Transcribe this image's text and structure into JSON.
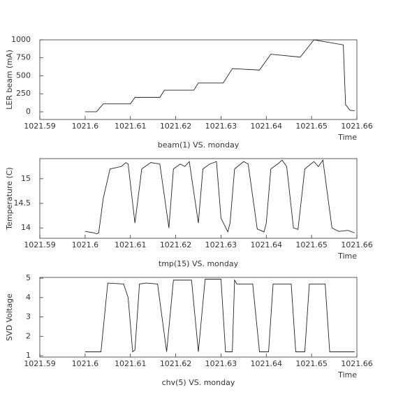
{
  "chart_data": [
    {
      "type": "line",
      "title": "beam(1) VS. monday",
      "xlabel": "Time",
      "ylabel": "LER beam (mA)",
      "color": "#222222",
      "x": [
        1021.6,
        1021.6025,
        1021.604,
        1021.61,
        1021.611,
        1021.6165,
        1021.6175,
        1021.624,
        1021.625,
        1021.6305,
        1021.6325,
        1021.6385,
        1021.641,
        1021.6475,
        1021.6505,
        1021.657,
        1021.6575,
        1021.6585,
        1021.6595
      ],
      "values": [
        0,
        0,
        110,
        110,
        200,
        200,
        300,
        300,
        400,
        400,
        600,
        580,
        800,
        760,
        1000,
        930,
        100,
        20,
        15
      ],
      "xlim": [
        1021.59,
        1021.66
      ],
      "xticks": [
        1021.59,
        1021.6,
        1021.61,
        1021.62,
        1021.63,
        1021.64,
        1021.65,
        1021.66
      ],
      "ylim": [
        -107,
        1000
      ],
      "yticks": [
        0,
        250,
        500,
        750,
        1000
      ]
    },
    {
      "type": "line",
      "title": "tmp(15) VS. monday",
      "xlabel": "Time",
      "ylabel": "Temperature (C)",
      "color": "#222222",
      "x": [
        1021.6,
        1021.602,
        1021.6025,
        1021.603,
        1021.604,
        1021.6055,
        1021.608,
        1021.609,
        1021.6095,
        1021.611,
        1021.6125,
        1021.6145,
        1021.6165,
        1021.6185,
        1021.6195,
        1021.621,
        1021.622,
        1021.623,
        1021.625,
        1021.626,
        1021.6275,
        1021.629,
        1021.63,
        1021.6315,
        1021.632,
        1021.633,
        1021.635,
        1021.636,
        1021.638,
        1021.6395,
        1021.64,
        1021.641,
        1021.6425,
        1021.6435,
        1021.6445,
        1021.646,
        1021.647,
        1021.6485,
        1021.6505,
        1021.6515,
        1021.6525,
        1021.6545,
        1021.656,
        1021.658,
        1021.6595
      ],
      "values": [
        13.93,
        13.9,
        13.88,
        13.9,
        14.6,
        15.2,
        15.25,
        15.33,
        15.3,
        14.1,
        15.2,
        15.33,
        15.3,
        14.0,
        15.2,
        15.3,
        15.25,
        15.35,
        14.1,
        15.2,
        15.3,
        15.35,
        14.2,
        13.92,
        14.1,
        15.2,
        15.35,
        15.3,
        13.98,
        13.92,
        14.1,
        15.2,
        15.3,
        15.38,
        15.25,
        14.0,
        13.97,
        15.2,
        15.35,
        15.25,
        15.38,
        14.0,
        13.93,
        13.95,
        13.9
      ],
      "xlim": [
        1021.59,
        1021.66
      ],
      "xticks": [
        1021.59,
        1021.6,
        1021.61,
        1021.62,
        1021.63,
        1021.64,
        1021.65,
        1021.66
      ],
      "ylim": [
        13.79,
        15.41
      ],
      "yticks": [
        14,
        14.5,
        15
      ]
    },
    {
      "type": "line",
      "title": "chv(5) VS. monday",
      "xlabel": "Time",
      "ylabel": "SVD Voltage",
      "color": "#222222",
      "x": [
        1021.6,
        1021.6035,
        1021.605,
        1021.6085,
        1021.6095,
        1021.6105,
        1021.611,
        1021.612,
        1021.6135,
        1021.616,
        1021.618,
        1021.6195,
        1021.6235,
        1021.625,
        1021.6265,
        1021.63,
        1021.631,
        1021.6325,
        1021.633,
        1021.6335,
        1021.637,
        1021.6385,
        1021.6405,
        1021.6415,
        1021.6455,
        1021.6465,
        1021.6485,
        1021.6495,
        1021.653,
        1021.654,
        1021.6595
      ],
      "values": [
        1.2,
        1.2,
        4.75,
        4.7,
        4.0,
        1.2,
        1.3,
        4.7,
        4.75,
        4.7,
        1.2,
        4.9,
        4.9,
        1.2,
        4.95,
        4.95,
        1.2,
        1.2,
        4.9,
        4.7,
        4.7,
        1.2,
        1.2,
        4.7,
        4.7,
        1.2,
        1.2,
        4.7,
        4.7,
        1.2,
        1.2
      ],
      "xlim": [
        1021.59,
        1021.66
      ],
      "xticks": [
        1021.59,
        1021.6,
        1021.61,
        1021.62,
        1021.63,
        1021.64,
        1021.65,
        1021.66
      ],
      "ylim": [
        0.93,
        5.04
      ],
      "yticks": [
        1,
        2,
        3,
        4,
        5
      ]
    }
  ]
}
